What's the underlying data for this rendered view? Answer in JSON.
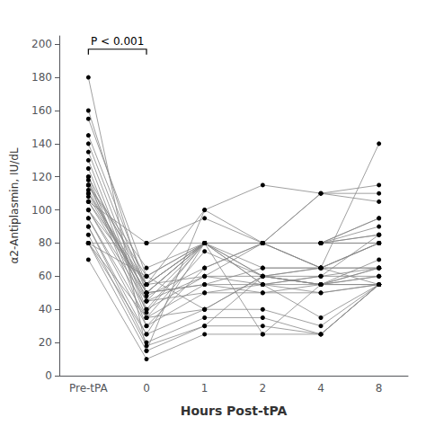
{
  "chart_data": {
    "type": "line",
    "xlabel": "Hours Post-tPA",
    "ylabel": "α2-Antiplasmin, IU/dL",
    "categories": [
      "Pre-tPA",
      "0",
      "1",
      "2",
      "4",
      "8"
    ],
    "ylim": [
      0,
      205
    ],
    "yticks": [
      0,
      20,
      40,
      60,
      80,
      100,
      120,
      140,
      160,
      180,
      200
    ],
    "grid": false,
    "marker": "circle",
    "color": {
      "line": "#888888",
      "marker": "#000000"
    },
    "annotations": [
      {
        "text": "P < 0.001",
        "from": "Pre-tPA",
        "to": "0",
        "y": 197
      }
    ],
    "series": [
      {
        "values": [
          180,
          15,
          100,
          80,
          80,
          95
        ]
      },
      {
        "values": [
          160,
          50,
          80,
          80,
          80,
          80
        ]
      },
      {
        "values": [
          155,
          60,
          80,
          65,
          65,
          65
        ]
      },
      {
        "values": [
          145,
          55,
          60,
          55,
          60,
          65
        ]
      },
      {
        "values": [
          140,
          50,
          55,
          50,
          55,
          70
        ]
      },
      {
        "values": [
          135,
          45,
          50,
          50,
          50,
          55
        ]
      },
      {
        "values": [
          130,
          40,
          80,
          60,
          60,
          60
        ]
      },
      {
        "values": [
          125,
          38,
          80,
          60,
          55,
          65
        ]
      },
      {
        "values": [
          120,
          35,
          75,
          60,
          55,
          60
        ]
      },
      {
        "values": [
          120,
          55,
          100,
          115,
          110,
          115
        ]
      },
      {
        "values": [
          118,
          30,
          65,
          80,
          65,
          80
        ]
      },
      {
        "values": [
          115,
          60,
          80,
          80,
          110,
          110
        ]
      },
      {
        "values": [
          115,
          65,
          80,
          80,
          110,
          105
        ]
      },
      {
        "values": [
          115,
          45,
          60,
          80,
          80,
          80
        ]
      },
      {
        "values": [
          112,
          50,
          55,
          65,
          65,
          65
        ]
      },
      {
        "values": [
          110,
          50,
          80,
          80,
          80,
          85
        ]
      },
      {
        "values": [
          110,
          55,
          80,
          80,
          80,
          85
        ]
      },
      {
        "values": [
          108,
          50,
          80,
          55,
          60,
          85
        ]
      },
      {
        "values": [
          105,
          48,
          65,
          80,
          80,
          90
        ]
      },
      {
        "values": [
          105,
          80,
          80,
          80,
          80,
          80
        ]
      },
      {
        "values": [
          105,
          55,
          80,
          80,
          65,
          80
        ]
      },
      {
        "values": [
          100,
          45,
          80,
          55,
          55,
          60
        ]
      },
      {
        "values": [
          100,
          55,
          80,
          80,
          65,
          80
        ]
      },
      {
        "values": [
          100,
          40,
          60,
          60,
          55,
          65
        ]
      },
      {
        "values": [
          95,
          35,
          55,
          55,
          50,
          55
        ]
      },
      {
        "values": [
          95,
          30,
          50,
          55,
          35,
          55
        ]
      },
      {
        "values": [
          90,
          25,
          40,
          40,
          30,
          55
        ]
      },
      {
        "values": [
          90,
          20,
          35,
          35,
          25,
          55
        ]
      },
      {
        "values": [
          85,
          18,
          30,
          30,
          25,
          55
        ]
      },
      {
        "values": [
          80,
          80,
          95,
          80,
          80,
          95
        ]
      },
      {
        "values": [
          80,
          25,
          80,
          25,
          25,
          55
        ]
      },
      {
        "values": [
          80,
          15,
          30,
          60,
          65,
          55
        ]
      },
      {
        "values": [
          70,
          10,
          25,
          25,
          55,
          55
        ]
      },
      {
        "values": [
          80,
          60,
          40,
          60,
          65,
          140
        ]
      },
      {
        "values": [
          80,
          35,
          40,
          60,
          55,
          55
        ]
      }
    ]
  }
}
